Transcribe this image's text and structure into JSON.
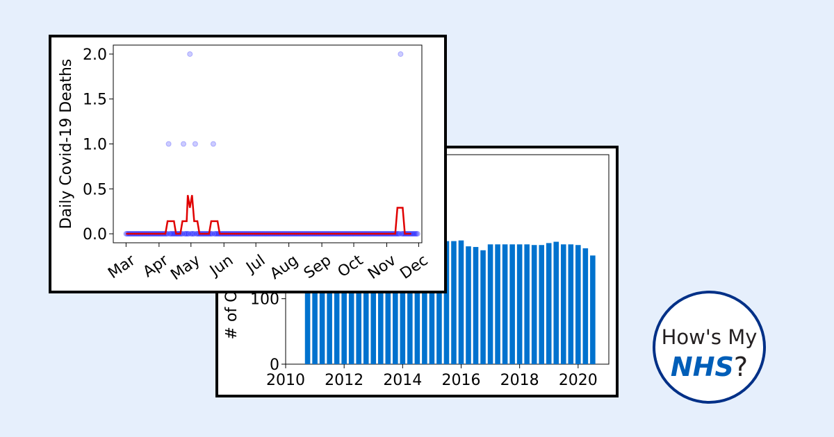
{
  "colors": {
    "background": "#e6effc",
    "bar": "#0072ce",
    "scatter": "#0000ff",
    "line": "#e00000",
    "logo_blue": "#005eb8",
    "logo_border": "#003087"
  },
  "logo": {
    "line1": "How's My",
    "brand": "NHS",
    "suffix": "?"
  },
  "chart_data": [
    {
      "type": "scatter",
      "ylabel": "Daily Covid-19 Deaths",
      "x_ticks": [
        "Mar",
        "Apr",
        "May",
        "Jun",
        "Jul",
        "Aug",
        "Sep",
        "Oct",
        "Nov",
        "Dec"
      ],
      "y_ticks": [
        "0.0",
        "0.5",
        "1.0",
        "1.5",
        "2.0"
      ],
      "ylim": [
        -0.1,
        2.1
      ],
      "xlim": [
        "2020-02-18",
        "2020-12-04"
      ],
      "x_range": [
        "2020-03-01",
        "2020-11-30"
      ],
      "nonzero_points": [
        {
          "x": "2020-04-10",
          "y": 1
        },
        {
          "x": "2020-04-24",
          "y": 1
        },
        {
          "x": "2020-04-30",
          "y": 2
        },
        {
          "x": "2020-05-05",
          "y": 1
        },
        {
          "x": "2020-05-22",
          "y": 1
        },
        {
          "x": "2020-11-14",
          "y": 2
        }
      ],
      "rolling_average": [
        {
          "x": "2020-04-07",
          "y": 0
        },
        {
          "x": "2020-04-09",
          "y": 0.14
        },
        {
          "x": "2020-04-15",
          "y": 0.14
        },
        {
          "x": "2020-04-17",
          "y": 0
        },
        {
          "x": "2020-04-21",
          "y": 0
        },
        {
          "x": "2020-04-23",
          "y": 0.14
        },
        {
          "x": "2020-04-27",
          "y": 0.14
        },
        {
          "x": "2020-04-28",
          "y": 0.43
        },
        {
          "x": "2020-04-30",
          "y": 0.29
        },
        {
          "x": "2020-05-02",
          "y": 0.43
        },
        {
          "x": "2020-05-04",
          "y": 0.14
        },
        {
          "x": "2020-05-07",
          "y": 0.14
        },
        {
          "x": "2020-05-09",
          "y": 0
        },
        {
          "x": "2020-05-18",
          "y": 0
        },
        {
          "x": "2020-05-20",
          "y": 0.14
        },
        {
          "x": "2020-05-26",
          "y": 0.14
        },
        {
          "x": "2020-05-28",
          "y": 0
        },
        {
          "x": "2020-11-09",
          "y": 0
        },
        {
          "x": "2020-11-11",
          "y": 0.29
        },
        {
          "x": "2020-11-16",
          "y": 0.29
        },
        {
          "x": "2020-11-18",
          "y": 0
        },
        {
          "x": "2020-11-24",
          "y": 0
        }
      ]
    },
    {
      "type": "bar",
      "ylabel": "# of O",
      "x_ticks": [
        "2010",
        "2012",
        "2014",
        "2016",
        "2018",
        "2020"
      ],
      "y_ticks": [
        "0",
        "100"
      ],
      "xlim": [
        2010,
        2021.05
      ],
      "ylim": [
        0,
        320
      ],
      "bar_width_years": 0.18,
      "x": [
        2010.75,
        2011.0,
        2011.25,
        2011.5,
        2011.75,
        2012.0,
        2012.25,
        2012.5,
        2012.75,
        2013.0,
        2013.25,
        2013.5,
        2013.75,
        2014.0,
        2014.25,
        2014.5,
        2014.75,
        2015.0,
        2015.25,
        2015.5,
        2015.75,
        2016.0,
        2016.25,
        2016.5,
        2016.75,
        2017.0,
        2017.25,
        2017.5,
        2017.75,
        2018.0,
        2018.25,
        2018.5,
        2018.75,
        2019.0,
        2019.25,
        2019.5,
        2019.75,
        2020.0,
        2020.25,
        2020.5
      ],
      "values": [
        188,
        188,
        188,
        188,
        188,
        188,
        188,
        188,
        188,
        188,
        188,
        188,
        188,
        188,
        188,
        188,
        188,
        188,
        188,
        188,
        188,
        189,
        180,
        179,
        174,
        183,
        183,
        183,
        183,
        183,
        183,
        182,
        182,
        185,
        187,
        183,
        183,
        182,
        177,
        166
      ]
    }
  ]
}
